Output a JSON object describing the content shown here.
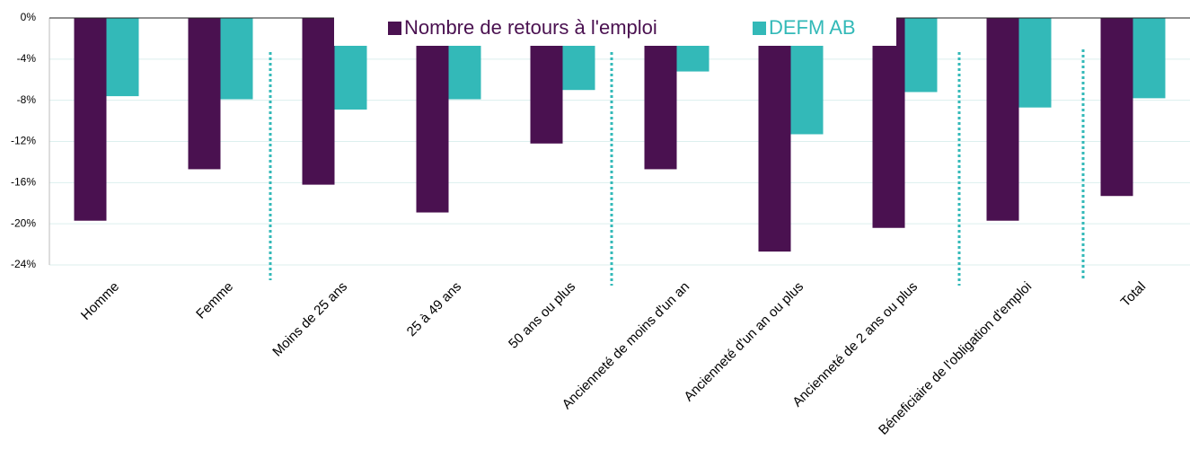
{
  "chart_data": {
    "type": "bar",
    "categories": [
      "Homme",
      "Femme",
      "Moins de 25 ans",
      "25 à 49 ans",
      "50 ans ou plus",
      "Ancienneté de moins d'un an",
      "Ancienneté d'un an ou plus",
      "Ancienneté de 2 ans ou plus",
      "Béneficiaire de l'obligation d'emploi",
      "Total"
    ],
    "series": [
      {
        "name": "Nombre de retours à l'emploi",
        "color": "#4a1150",
        "values": [
          -19.7,
          -14.7,
          -16.2,
          -18.9,
          -12.2,
          -14.7,
          -22.7,
          -20.4,
          -19.7,
          -17.3
        ]
      },
      {
        "name": "DEFM AB",
        "color": "#33b9b8",
        "values": [
          -7.6,
          -7.9,
          -8.9,
          -7.9,
          -7.0,
          -5.2,
          -11.3,
          -7.2,
          -8.7,
          -7.8
        ]
      }
    ],
    "ylim": [
      -24,
      0
    ],
    "yticks": [
      {
        "value": 0,
        "label": "0%"
      },
      {
        "value": -4,
        "label": "-4%"
      },
      {
        "value": -8,
        "label": "-8%"
      },
      {
        "value": -12,
        "label": "-12%"
      },
      {
        "value": -16,
        "label": "-16%"
      },
      {
        "value": -20,
        "label": "-20%"
      },
      {
        "value": -24,
        "label": "-24%"
      }
    ],
    "grid": true,
    "legend": "top"
  }
}
